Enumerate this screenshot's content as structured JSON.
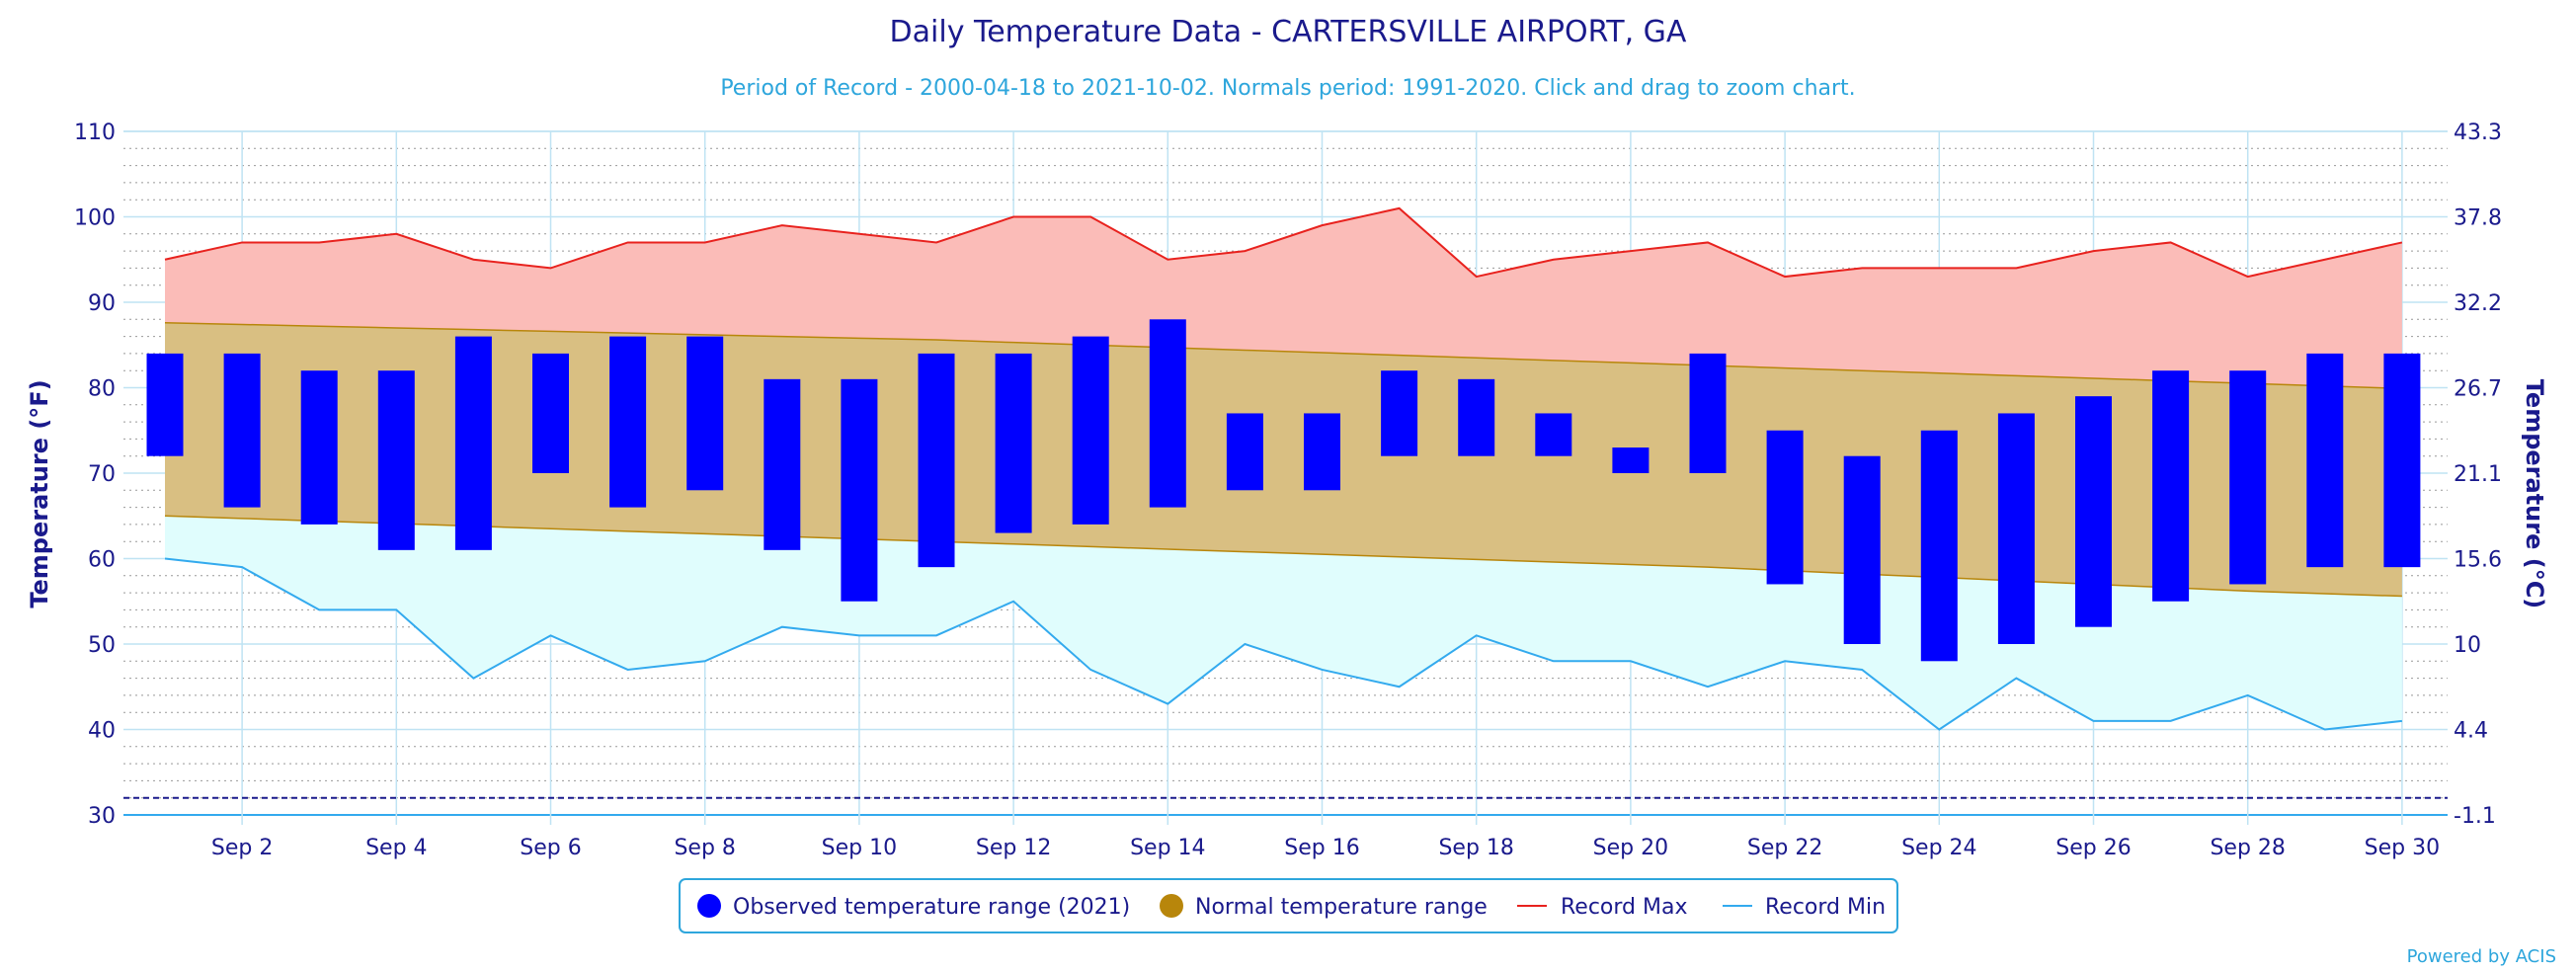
{
  "chart_data": {
    "type": "bar",
    "title": "Daily Temperature Data - CARTERSVILLE AIRPORT, GA",
    "subtitle": "Period of Record - 2000-04-18 to 2021-10-02. Normals period: 1991-2020. Click and drag to zoom chart.",
    "ylabel_left": "Temperature (°F)",
    "ylabel_right": "Temperature (°C)",
    "ylim": [
      30,
      110
    ],
    "yticks_left": [
      "30",
      "40",
      "50",
      "60",
      "70",
      "80",
      "90",
      "100",
      "110"
    ],
    "yticks_right": [
      "-1.1",
      "4.4",
      "10",
      "15.6",
      "21.1",
      "26.7",
      "32.2",
      "37.8",
      "43.3"
    ],
    "xlim": [
      1,
      30
    ],
    "x_tick_days": [
      2,
      4,
      6,
      8,
      10,
      12,
      14,
      16,
      18,
      20,
      22,
      24,
      26,
      28,
      30
    ],
    "x_tick_labels": [
      "Sep 2",
      "Sep 4",
      "Sep 6",
      "Sep 8",
      "Sep 10",
      "Sep 12",
      "Sep 14",
      "Sep 16",
      "Sep 18",
      "Sep 20",
      "Sep 22",
      "Sep 24",
      "Sep 26",
      "Sep 28",
      "Sep 30"
    ],
    "days": [
      1,
      2,
      3,
      4,
      5,
      6,
      7,
      8,
      9,
      10,
      11,
      12,
      13,
      14,
      15,
      16,
      17,
      18,
      19,
      20,
      21,
      22,
      23,
      24,
      25,
      26,
      27,
      28,
      29,
      30
    ],
    "series": [
      {
        "name": "Observed temperature range (2021)",
        "low": [
          72,
          66,
          64,
          61,
          61,
          70,
          66,
          68,
          61,
          55,
          59,
          63,
          64,
          66,
          68,
          68,
          72,
          72,
          72,
          70,
          70,
          57,
          50,
          48,
          50,
          52,
          55,
          57,
          59,
          59
        ],
        "high": [
          84,
          84,
          82,
          82,
          86,
          84,
          86,
          86,
          81,
          81,
          84,
          84,
          86,
          88,
          77,
          77,
          82,
          81,
          77,
          73,
          84,
          75,
          72,
          75,
          77,
          79,
          82,
          82,
          84,
          84
        ]
      },
      {
        "name": "Normal temperature range",
        "low": [
          65,
          64.7,
          64.4,
          64.1,
          63.8,
          63.5,
          63.2,
          62.9,
          62.6,
          62.3,
          62,
          61.7,
          61.4,
          61.1,
          60.8,
          60.5,
          60.2,
          59.9,
          59.6,
          59.3,
          59,
          58.6,
          58.2,
          57.8,
          57.4,
          57,
          56.6,
          56.2,
          55.9,
          55.6
        ],
        "high": [
          87.6,
          87.4,
          87.2,
          87,
          86.8,
          86.6,
          86.4,
          86.2,
          86,
          85.8,
          85.6,
          85.3,
          85,
          84.7,
          84.4,
          84.1,
          83.8,
          83.5,
          83.2,
          82.9,
          82.6,
          82.3,
          82,
          81.7,
          81.4,
          81.1,
          80.8,
          80.5,
          80.2,
          79.9
        ]
      },
      {
        "name": "Record Max",
        "values": [
          95,
          97,
          97,
          98,
          95,
          94,
          97,
          97,
          99,
          98,
          97,
          100,
          100,
          95,
          96,
          99,
          101,
          93,
          95,
          96,
          97,
          93,
          94,
          94,
          94,
          96,
          97,
          93,
          95,
          97
        ]
      },
      {
        "name": "Record Min",
        "values": [
          60,
          59,
          54,
          54,
          46,
          51,
          47,
          48,
          52,
          51,
          51,
          55,
          47,
          43,
          50,
          47,
          45,
          51,
          48,
          48,
          45,
          48,
          47,
          40,
          46,
          41,
          41,
          44,
          40,
          41
        ]
      }
    ],
    "reference_line": 32,
    "grid": true,
    "legend_position": "bottom-center",
    "colors": {
      "observed": "#0000ff",
      "normal_fill": "#d9bf82",
      "normal_legend": "#b8860b",
      "normal_line": "#b8860b",
      "record_max_line": "#e8221e",
      "record_max_fill": "#fbbcb8",
      "record_min_line": "#33aaee",
      "record_min_fill": "#e0fdfd",
      "grid": "#bfe3f3",
      "axis_text": "#1a1a8c",
      "reference_line": "#1a1a8c"
    }
  },
  "credit": "Powered by ACIS"
}
